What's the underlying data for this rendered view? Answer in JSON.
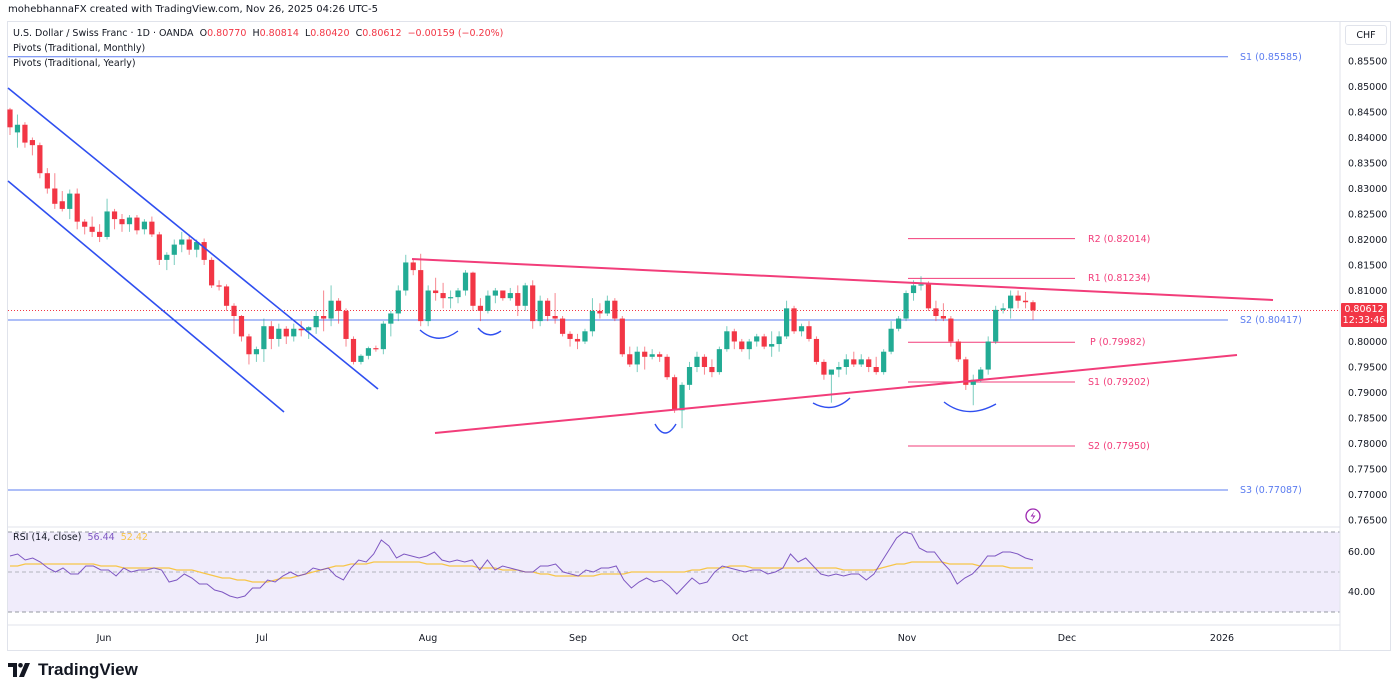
{
  "header": {
    "attribution": "mohebhannaFX created with TradingView.com, Nov 26, 2025 04:26 UTC-5"
  },
  "legend": {
    "symbol": "U.S. Dollar / Swiss Franc · 1D · OANDA",
    "open_label": "O",
    "open": "0.80770",
    "high_label": "H",
    "high": "0.80814",
    "low_label": "L",
    "low": "0.80420",
    "close_label": "C",
    "close": "0.80612",
    "change": "−0.00159 (−0.20%)",
    "indicator1": "Pivots (Traditional, Monthly)",
    "indicator2": "Pivots (Traditional, Yearly)"
  },
  "price_axis": {
    "currency": "CHF",
    "ticks": [
      "0.85500",
      "0.85000",
      "0.84500",
      "0.84000",
      "0.83500",
      "0.83000",
      "0.82500",
      "0.82000",
      "0.81500",
      "0.81000",
      "0.80000",
      "0.79500",
      "0.79000",
      "0.78500",
      "0.78000",
      "0.77500",
      "0.77000",
      "0.76500"
    ],
    "current_price": "0.80612",
    "countdown": "12:33:46"
  },
  "rsi": {
    "label": "RSI (14, close)",
    "value": "56.44",
    "ma_value": "52.42",
    "ticks": [
      "60.00",
      "40.00"
    ]
  },
  "time_axis": {
    "labels": [
      "Jun",
      "Jul",
      "Aug",
      "Sep",
      "Oct",
      "Nov",
      "Dec",
      "2026"
    ]
  },
  "pivot_labels": {
    "yearly_s1": "S1 (0.85585)",
    "yearly_s2": "S2 (0.80417)",
    "yearly_s3": "S3 (0.77087)",
    "monthly_r2": "R2 (0.82014)",
    "monthly_r1": "R1 (0.81234)",
    "monthly_p": "P (0.79982)",
    "monthly_s1": "S1 (0.79202)",
    "monthly_s2": "S2 (0.77950)"
  },
  "branding": {
    "logo_text": "TradingView"
  },
  "colors": {
    "up": "#22ab94",
    "down": "#f23645",
    "yearly_pivot": "#5b7cf0",
    "monthly_pivot": "#f23d7a",
    "trendline_pink": "#f23d7a",
    "channel_blue": "#2f4ff0",
    "rsi": "#7e57c2",
    "rsi_ma": "#f7c548"
  },
  "chart_data": {
    "type": "candlestick",
    "title": "U.S. Dollar / Swiss Franc · 1D · OANDA",
    "ylabel": "CHF",
    "ylim": [
      0.763,
      0.859
    ],
    "x_labels": [
      "Jun",
      "Jul",
      "Aug",
      "Sep",
      "Oct",
      "Nov",
      "Dec",
      "2026"
    ],
    "last_ohlc": {
      "open": 0.8077,
      "high": 0.80814,
      "low": 0.8042,
      "close": 0.80612,
      "change": -0.00159,
      "change_pct": -0.2
    },
    "pivots_yearly": {
      "S1": 0.85585,
      "S2": 0.80417,
      "S3": 0.77087
    },
    "pivots_monthly": {
      "R2": 0.82014,
      "R1": 0.81234,
      "P": 0.79982,
      "S1": 0.79202,
      "S2": 0.7795
    },
    "candles": [
      [
        0.8455,
        0.8458,
        0.8405,
        0.842
      ],
      [
        0.841,
        0.8445,
        0.838,
        0.8425
      ],
      [
        0.8425,
        0.843,
        0.838,
        0.839
      ],
      [
        0.8395,
        0.84,
        0.8365,
        0.8385
      ],
      [
        0.8385,
        0.839,
        0.832,
        0.833
      ],
      [
        0.833,
        0.834,
        0.829,
        0.83
      ],
      [
        0.83,
        0.833,
        0.826,
        0.827
      ],
      [
        0.8275,
        0.8295,
        0.8255,
        0.826
      ],
      [
        0.826,
        0.8298,
        0.824,
        0.829
      ],
      [
        0.829,
        0.83,
        0.822,
        0.8235
      ],
      [
        0.8235,
        0.824,
        0.821,
        0.8225
      ],
      [
        0.8225,
        0.8245,
        0.8205,
        0.8215
      ],
      [
        0.8215,
        0.823,
        0.8195,
        0.8205
      ],
      [
        0.8205,
        0.828,
        0.82,
        0.8255
      ],
      [
        0.8255,
        0.826,
        0.822,
        0.824
      ],
      [
        0.824,
        0.825,
        0.8215,
        0.823
      ],
      [
        0.823,
        0.8248,
        0.8215,
        0.8243
      ],
      [
        0.8243,
        0.8248,
        0.821,
        0.8218
      ],
      [
        0.822,
        0.824,
        0.821,
        0.8235
      ],
      [
        0.8235,
        0.8245,
        0.8205,
        0.821
      ],
      [
        0.821,
        0.8215,
        0.815,
        0.816
      ],
      [
        0.816,
        0.8175,
        0.814,
        0.817
      ],
      [
        0.817,
        0.82,
        0.815,
        0.819
      ],
      [
        0.819,
        0.8215,
        0.8175,
        0.82
      ],
      [
        0.82,
        0.821,
        0.817,
        0.818
      ],
      [
        0.818,
        0.82,
        0.8165,
        0.8195
      ],
      [
        0.8195,
        0.8202,
        0.815,
        0.816
      ],
      [
        0.816,
        0.8165,
        0.8105,
        0.811
      ],
      [
        0.811,
        0.812,
        0.81,
        0.8108
      ],
      [
        0.8108,
        0.8112,
        0.806,
        0.807
      ],
      [
        0.807,
        0.8075,
        0.8015,
        0.805
      ],
      [
        0.805,
        0.8052,
        0.8,
        0.801
      ],
      [
        0.801,
        0.8015,
        0.7955,
        0.7975
      ],
      [
        0.7975,
        0.799,
        0.796,
        0.7985
      ],
      [
        0.7985,
        0.8045,
        0.796,
        0.803
      ],
      [
        0.803,
        0.804,
        0.7985,
        0.8005
      ],
      [
        0.8005,
        0.8035,
        0.799,
        0.8025
      ],
      [
        0.8025,
        0.803,
        0.7995,
        0.801
      ],
      [
        0.801,
        0.8035,
        0.8,
        0.8025
      ],
      [
        0.8025,
        0.804,
        0.801,
        0.8022
      ],
      [
        0.8022,
        0.803,
        0.8005,
        0.8028
      ],
      [
        0.8028,
        0.806,
        0.8015,
        0.805
      ],
      [
        0.805,
        0.81,
        0.802,
        0.8045
      ],
      [
        0.8045,
        0.811,
        0.803,
        0.808
      ],
      [
        0.808,
        0.8085,
        0.8035,
        0.806
      ],
      [
        0.806,
        0.8065,
        0.799,
        0.8005
      ],
      [
        0.8005,
        0.801,
        0.7955,
        0.796
      ],
      [
        0.796,
        0.7975,
        0.7955,
        0.7972
      ],
      [
        0.7972,
        0.799,
        0.7965,
        0.7987
      ],
      [
        0.7987,
        0.7992,
        0.798,
        0.7985
      ],
      [
        0.7985,
        0.804,
        0.7975,
        0.8035
      ],
      [
        0.8035,
        0.806,
        0.801,
        0.8055
      ],
      [
        0.8055,
        0.811,
        0.804,
        0.81
      ],
      [
        0.81,
        0.817,
        0.809,
        0.8155
      ],
      [
        0.8155,
        0.816,
        0.813,
        0.814
      ],
      [
        0.814,
        0.8172,
        0.803,
        0.804
      ],
      [
        0.804,
        0.811,
        0.803,
        0.81
      ],
      [
        0.81,
        0.8125,
        0.808,
        0.8095
      ],
      [
        0.8095,
        0.8115,
        0.8065,
        0.8085
      ],
      [
        0.8085,
        0.81,
        0.8065,
        0.8087
      ],
      [
        0.8087,
        0.8105,
        0.8075,
        0.81
      ],
      [
        0.81,
        0.814,
        0.809,
        0.8135
      ],
      [
        0.8135,
        0.8137,
        0.806,
        0.807
      ],
      [
        0.807,
        0.8085,
        0.804,
        0.806
      ],
      [
        0.806,
        0.81,
        0.8055,
        0.809
      ],
      [
        0.809,
        0.8105,
        0.8075,
        0.81
      ],
      [
        0.81,
        0.8095,
        0.808,
        0.8085
      ],
      [
        0.8085,
        0.8105,
        0.808,
        0.8095
      ],
      [
        0.8095,
        0.811,
        0.805,
        0.807
      ],
      [
        0.807,
        0.8115,
        0.806,
        0.811
      ],
      [
        0.811,
        0.812,
        0.8025,
        0.804
      ],
      [
        0.804,
        0.809,
        0.803,
        0.808
      ],
      [
        0.808,
        0.8085,
        0.804,
        0.805
      ],
      [
        0.805,
        0.8095,
        0.8035,
        0.8045
      ],
      [
        0.8045,
        0.805,
        0.801,
        0.8015
      ],
      [
        0.8015,
        0.802,
        0.799,
        0.8005
      ],
      [
        0.8005,
        0.8015,
        0.7985,
        0.8
      ],
      [
        0.8,
        0.8025,
        0.7995,
        0.802
      ],
      [
        0.802,
        0.8085,
        0.801,
        0.806
      ],
      [
        0.806,
        0.8075,
        0.8045,
        0.8055
      ],
      [
        0.8055,
        0.809,
        0.805,
        0.808
      ],
      [
        0.808,
        0.8085,
        0.804,
        0.8045
      ],
      [
        0.8045,
        0.805,
        0.797,
        0.7975
      ],
      [
        0.7975,
        0.799,
        0.795,
        0.7955
      ],
      [
        0.7955,
        0.799,
        0.794,
        0.798
      ],
      [
        0.798,
        0.799,
        0.7945,
        0.797
      ],
      [
        0.797,
        0.7985,
        0.7965,
        0.7975
      ],
      [
        0.7975,
        0.798,
        0.796,
        0.797
      ],
      [
        0.797,
        0.7975,
        0.7925,
        0.793
      ],
      [
        0.793,
        0.7935,
        0.786,
        0.7865
      ],
      [
        0.7865,
        0.792,
        0.783,
        0.7915
      ],
      [
        0.7915,
        0.796,
        0.7905,
        0.795
      ],
      [
        0.795,
        0.798,
        0.794,
        0.797
      ],
      [
        0.797,
        0.7975,
        0.7935,
        0.795
      ],
      [
        0.795,
        0.7965,
        0.793,
        0.794
      ],
      [
        0.794,
        0.799,
        0.7935,
        0.7985
      ],
      [
        0.7985,
        0.803,
        0.798,
        0.802
      ],
      [
        0.802,
        0.8025,
        0.7985,
        0.8
      ],
      [
        0.8,
        0.8005,
        0.798,
        0.7985
      ],
      [
        0.7985,
        0.8005,
        0.7965,
        0.8
      ],
      [
        0.8,
        0.8015,
        0.799,
        0.801
      ],
      [
        0.801,
        0.8015,
        0.7985,
        0.799
      ],
      [
        0.799,
        0.802,
        0.797,
        0.7995
      ],
      [
        0.7995,
        0.802,
        0.798,
        0.801
      ],
      [
        0.801,
        0.808,
        0.8005,
        0.8065
      ],
      [
        0.8065,
        0.807,
        0.8015,
        0.802
      ],
      [
        0.802,
        0.8035,
        0.801,
        0.803
      ],
      [
        0.803,
        0.804,
        0.8,
        0.8005
      ],
      [
        0.8005,
        0.801,
        0.7955,
        0.796
      ],
      [
        0.796,
        0.7965,
        0.7925,
        0.7935
      ],
      [
        0.7935,
        0.794,
        0.788,
        0.7945
      ],
      [
        0.7945,
        0.796,
        0.793,
        0.795
      ],
      [
        0.795,
        0.7975,
        0.7935,
        0.7965
      ],
      [
        0.7965,
        0.798,
        0.795,
        0.7955
      ],
      [
        0.7955,
        0.7975,
        0.795,
        0.7965
      ],
      [
        0.7965,
        0.797,
        0.794,
        0.795
      ],
      [
        0.795,
        0.797,
        0.7935,
        0.794
      ],
      [
        0.794,
        0.7985,
        0.7935,
        0.798
      ],
      [
        0.798,
        0.804,
        0.7975,
        0.8025
      ],
      [
        0.8025,
        0.805,
        0.802,
        0.8045
      ],
      [
        0.8045,
        0.81,
        0.804,
        0.8095
      ],
      [
        0.8095,
        0.812,
        0.808,
        0.811
      ],
      [
        0.811,
        0.8128,
        0.81,
        0.8112
      ],
      [
        0.8112,
        0.8118,
        0.806,
        0.8065
      ],
      [
        0.8065,
        0.808,
        0.804,
        0.805
      ],
      [
        0.805,
        0.8075,
        0.804,
        0.8045
      ],
      [
        0.8045,
        0.805,
        0.799,
        0.8
      ],
      [
        0.8,
        0.8005,
        0.796,
        0.7965
      ],
      [
        0.7965,
        0.797,
        0.7905,
        0.7915
      ],
      [
        0.7915,
        0.7935,
        0.7875,
        0.7925
      ],
      [
        0.7925,
        0.795,
        0.792,
        0.7945
      ],
      [
        0.7945,
        0.801,
        0.7935,
        0.8
      ],
      [
        0.8,
        0.807,
        0.7995,
        0.8062
      ],
      [
        0.8062,
        0.8075,
        0.8055,
        0.8065
      ],
      [
        0.8065,
        0.81,
        0.8045,
        0.809
      ],
      [
        0.809,
        0.81,
        0.8065,
        0.808
      ],
      [
        0.808,
        0.8097,
        0.8065,
        0.8077
      ],
      [
        0.8077,
        0.8081,
        0.8042,
        0.8061
      ]
    ],
    "annotations": [
      "Descending channel (blue) May–Jul",
      "Symmetrical triangle (pink) Aug–Dec",
      "Blue arc markers under swing lows"
    ],
    "rsi": {
      "period": 14,
      "last": 56.44,
      "ma_last": 52.42,
      "levels": [
        70,
        50,
        30
      ],
      "ticks": [
        60,
        40
      ]
    }
  }
}
